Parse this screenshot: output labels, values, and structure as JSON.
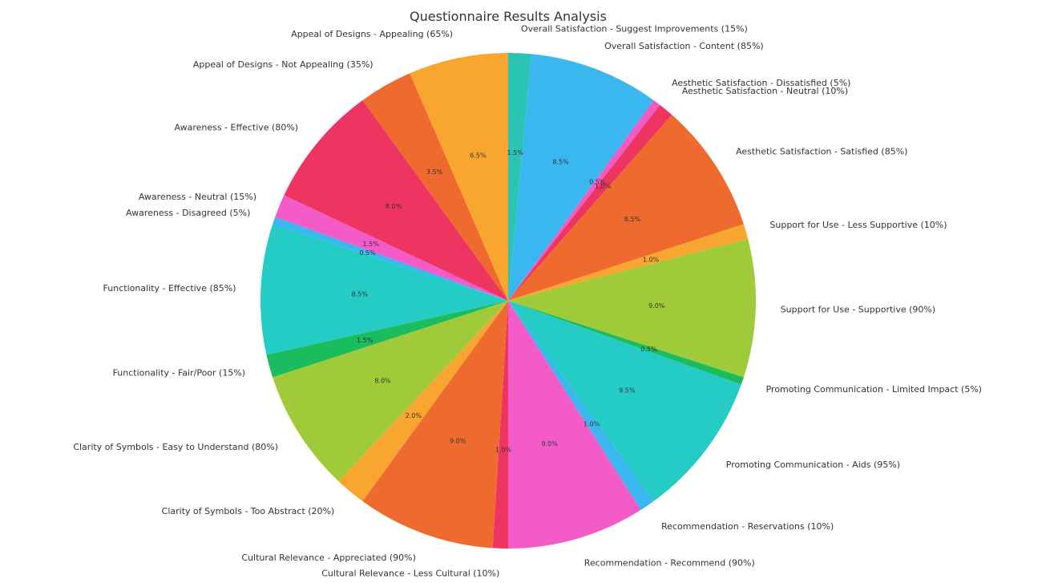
{
  "chart_data": {
    "type": "pie",
    "title": "Questionnaire Results Analysis",
    "start_angle_deg": 90,
    "direction": "clockwise",
    "slices": [
      {
        "label": "Overall Satisfaction - Suggest Improvements (15%)",
        "value": 1.5,
        "pct_label": "1.5%",
        "color": "#2bc4b4"
      },
      {
        "label": "Overall Satisfaction - Content (85%)",
        "value": 8.5,
        "pct_label": "8.5%",
        "color": "#3bb7f0"
      },
      {
        "label": "Aesthetic Satisfaction - Dissatisfied (5%)",
        "value": 0.5,
        "pct_label": "0.5%",
        "color": "#f25bc5"
      },
      {
        "label": "Aesthetic Satisfaction - Neutral (10%)",
        "value": 1.0,
        "pct_label": "1.0%",
        "color": "#ee3460"
      },
      {
        "label": "Aesthetic Satisfaction - Satisfied (85%)",
        "value": 8.5,
        "pct_label": "8.5%",
        "color": "#ef6a2e"
      },
      {
        "label": "Support for Use - Less Supportive (10%)",
        "value": 1.0,
        "pct_label": "1.0%",
        "color": "#f9a630"
      },
      {
        "label": "Support for Use - Supportive (90%)",
        "value": 9.0,
        "pct_label": "9.0%",
        "color": "#9fcb3a"
      },
      {
        "label": "Promoting Communication - Limited Impact (5%)",
        "value": 0.5,
        "pct_label": "0.5%",
        "color": "#1bbc5e"
      },
      {
        "label": "Promoting Communication - Aids (95%)",
        "value": 9.5,
        "pct_label": "9.5%",
        "color": "#25cbc5"
      },
      {
        "label": "Recommendation - Reservations (10%)",
        "value": 1.0,
        "pct_label": "1.0%",
        "color": "#3bb7f0"
      },
      {
        "label": "Recommendation - Recommend (90%)",
        "value": 9.0,
        "pct_label": "9.0%",
        "color": "#f35cc8"
      },
      {
        "label": "Cultural Relevance - Less Cultural (10%)",
        "value": 1.0,
        "pct_label": "1.0%",
        "color": "#ee3460"
      },
      {
        "label": "Cultural Relevance - Appreciated (90%)",
        "value": 9.0,
        "pct_label": "9.0%",
        "color": "#ef6a2e"
      },
      {
        "label": "Clarity of Symbols - Too Abstract (20%)",
        "value": 2.0,
        "pct_label": "2.0%",
        "color": "#f9a630"
      },
      {
        "label": "Clarity of Symbols - Easy to Understand (80%)",
        "value": 8.0,
        "pct_label": "8.0%",
        "color": "#9fcb3a"
      },
      {
        "label": "Functionality - Fair/Poor (15%)",
        "value": 1.5,
        "pct_label": "1.5%",
        "color": "#1bbc5e"
      },
      {
        "label": "Functionality - Effective (85%)",
        "value": 8.5,
        "pct_label": "8.5%",
        "color": "#25cbc5"
      },
      {
        "label": "Awareness - Disagreed (5%)",
        "value": 0.5,
        "pct_label": "0.5%",
        "color": "#3bb7f0"
      },
      {
        "label": "Awareness - Neutral (15%)",
        "value": 1.5,
        "pct_label": "1.5%",
        "color": "#f35cc8"
      },
      {
        "label": "Awareness - Effective (80%)",
        "value": 8.0,
        "pct_label": "8.0%",
        "color": "#ee3460"
      },
      {
        "label": "Appeal of Designs - Not Appealing (35%)",
        "value": 3.5,
        "pct_label": "3.5%",
        "color": "#ef6a2e"
      },
      {
        "label": "Appeal of Designs - Appealing (65%)",
        "value": 6.5,
        "pct_label": "6.5%",
        "color": "#f9a630"
      }
    ]
  }
}
